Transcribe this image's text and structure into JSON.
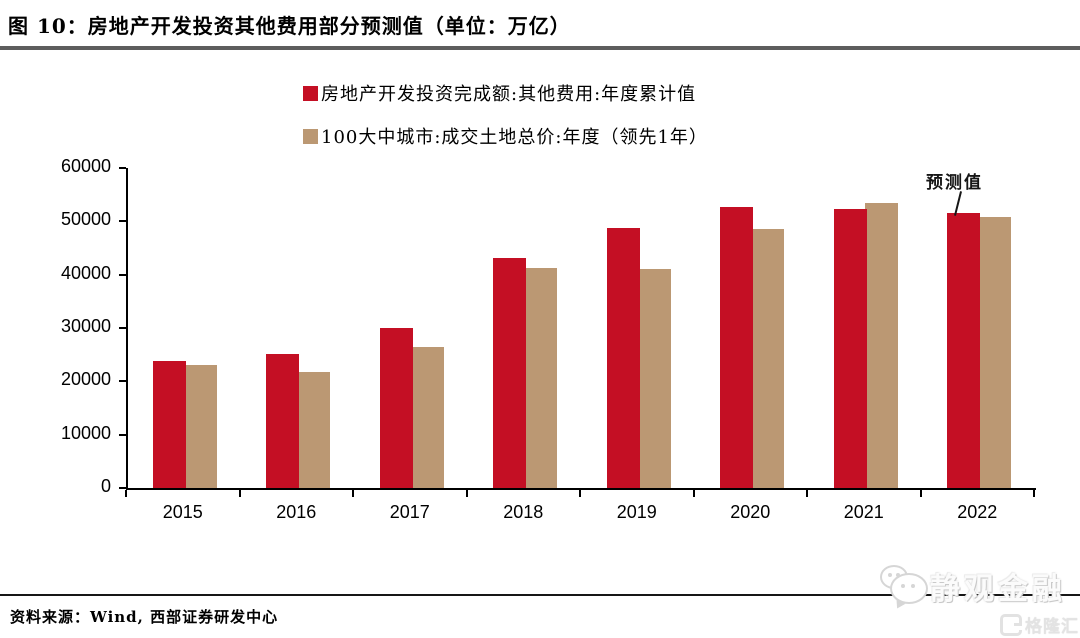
{
  "figure": {
    "title": "图 10：房地产开发投资其他费用部分预测值（单位：万亿）",
    "source": "资料来源：Wind, 西部证券研发中心",
    "annotation_label": "预测值"
  },
  "legend": [
    {
      "label": "房地产开发投资完成额:其他费用:年度累计值",
      "color": "#c40f24"
    },
    {
      "label": "100大中城市:成交土地总价:年度（领先1年）",
      "color": "#bb9873"
    }
  ],
  "chart_data": {
    "type": "bar",
    "categories": [
      "2015",
      "2016",
      "2017",
      "2018",
      "2019",
      "2020",
      "2021",
      "2022"
    ],
    "series": [
      {
        "name": "房地产开发投资完成额:其他费用:年度累计值",
        "color": "#c40f24",
        "values": [
          23900,
          25200,
          30000,
          43100,
          48800,
          52600,
          52400,
          51500
        ]
      },
      {
        "name": "100大中城市:成交土地总价:年度（领先1年）",
        "color": "#bb9873",
        "values": [
          23100,
          21700,
          26400,
          41200,
          41000,
          48600,
          53400,
          50800
        ]
      }
    ],
    "title": "房地产开发投资其他费用部分预测值",
    "unit": "万亿",
    "xlabel": "",
    "ylabel": "",
    "ylim": [
      0,
      60000
    ],
    "y_ticks": [
      0,
      10000,
      20000,
      30000,
      40000,
      50000,
      60000
    ],
    "grid": false,
    "legend_position": "top",
    "annotation": {
      "text": "预测值",
      "target_category": "2022",
      "target_series": "房地产开发投资完成额:其他费用:年度累计值"
    }
  },
  "watermark": {
    "brand": "静观金融",
    "logo_text": "格隆汇"
  }
}
